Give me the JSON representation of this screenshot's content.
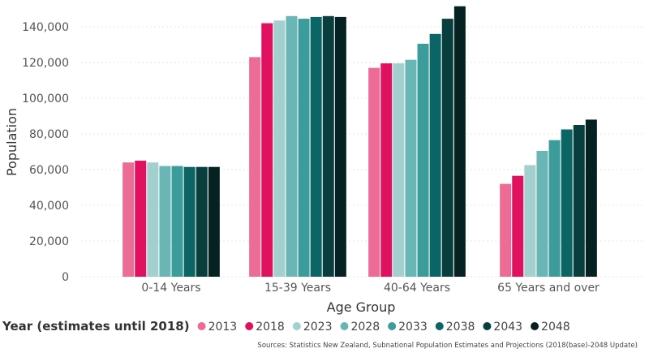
{
  "chart_data": {
    "type": "bar",
    "title": "",
    "xlabel": "Age Group",
    "ylabel": "Population",
    "ylim": [
      0,
      152000
    ],
    "yticks": [
      0,
      20000,
      40000,
      60000,
      80000,
      100000,
      120000,
      140000
    ],
    "ytick_labels": [
      "0",
      "20,000",
      "40,000",
      "60,000",
      "80,000",
      "100,000",
      "120,000",
      "140,000"
    ],
    "grid": true,
    "categories": [
      "0-14 Years",
      "15-39 Years",
      "40-64 Years",
      "65 Years and over"
    ],
    "legend": {
      "title": "Year (estimates until 2018)",
      "placement": "bottom"
    },
    "series": [
      {
        "name": "2013",
        "color": "#ec6c96",
        "values": [
          64000,
          123000,
          117000,
          52000
        ]
      },
      {
        "name": "2018",
        "color": "#e0115f",
        "values": [
          65000,
          142000,
          119500,
          56500
        ]
      },
      {
        "name": "2023",
        "color": "#a3cfcf",
        "values": [
          64000,
          143500,
          119500,
          62500
        ]
      },
      {
        "name": "2028",
        "color": "#6ab5b5",
        "values": [
          62000,
          146000,
          121500,
          70500
        ]
      },
      {
        "name": "2033",
        "color": "#3c9c9c",
        "values": [
          62000,
          144500,
          130500,
          76500
        ]
      },
      {
        "name": "2038",
        "color": "#0b6565",
        "values": [
          61500,
          145500,
          136000,
          82500
        ]
      },
      {
        "name": "2043",
        "color": "#083e3e",
        "values": [
          61500,
          146000,
          144500,
          85000
        ]
      },
      {
        "name": "2048",
        "color": "#052121",
        "values": [
          61500,
          145500,
          151500,
          88000
        ]
      }
    ],
    "source": "Sources: Statistics New Zealand, Subnational Population Estimates and Projections (2018(base)-2048 Update)"
  }
}
